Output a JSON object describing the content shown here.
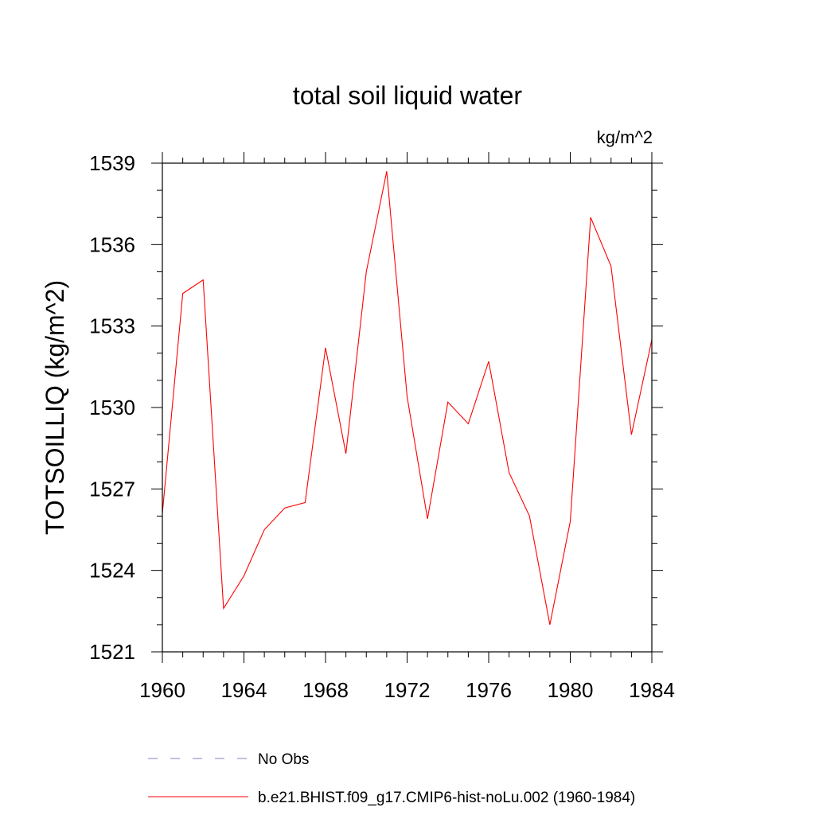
{
  "chart_data": {
    "type": "line",
    "title": "total soil liquid water",
    "units_label": "kg/m^2",
    "ylabel": "TOTSOILLIQ  (kg/m^2)",
    "xlabel": "",
    "xlim": [
      1960,
      1984
    ],
    "ylim": [
      1521,
      1539
    ],
    "x_ticks": [
      "1960",
      "1964",
      "1968",
      "1972",
      "1976",
      "1980",
      "1984"
    ],
    "y_ticks": [
      "1521",
      "1524",
      "1527",
      "1530",
      "1533",
      "1536",
      "1539"
    ],
    "x": [
      1960,
      1961,
      1962,
      1963,
      1964,
      1965,
      1966,
      1967,
      1968,
      1969,
      1970,
      1971,
      1972,
      1973,
      1974,
      1975,
      1976,
      1977,
      1978,
      1979,
      1980,
      1981,
      1982,
      1983,
      1984
    ],
    "series": [
      {
        "name": "b.e21.BHIST.f09_g17.CMIP6-hist-noLu.002 (1960-1984)",
        "color": "#ff0000",
        "values": [
          1526.1,
          1534.2,
          1534.7,
          1522.6,
          1523.8,
          1525.5,
          1526.3,
          1526.5,
          1532.2,
          1528.3,
          1535.0,
          1538.7,
          1530.4,
          1525.9,
          1530.2,
          1529.4,
          1531.7,
          1527.6,
          1526.0,
          1522.0,
          1525.8,
          1537.0,
          1535.2,
          1529.0,
          1532.5
        ]
      }
    ],
    "legend": {
      "placement": "bottom",
      "entries": [
        {
          "label": "No Obs",
          "color": "#8080c0",
          "style": "dashed"
        },
        {
          "label": "b.e21.BHIST.f09_g17.CMIP6-hist-noLu.002 (1960-1984)",
          "color": "#ff0000",
          "style": "solid"
        }
      ]
    },
    "grid": false
  }
}
